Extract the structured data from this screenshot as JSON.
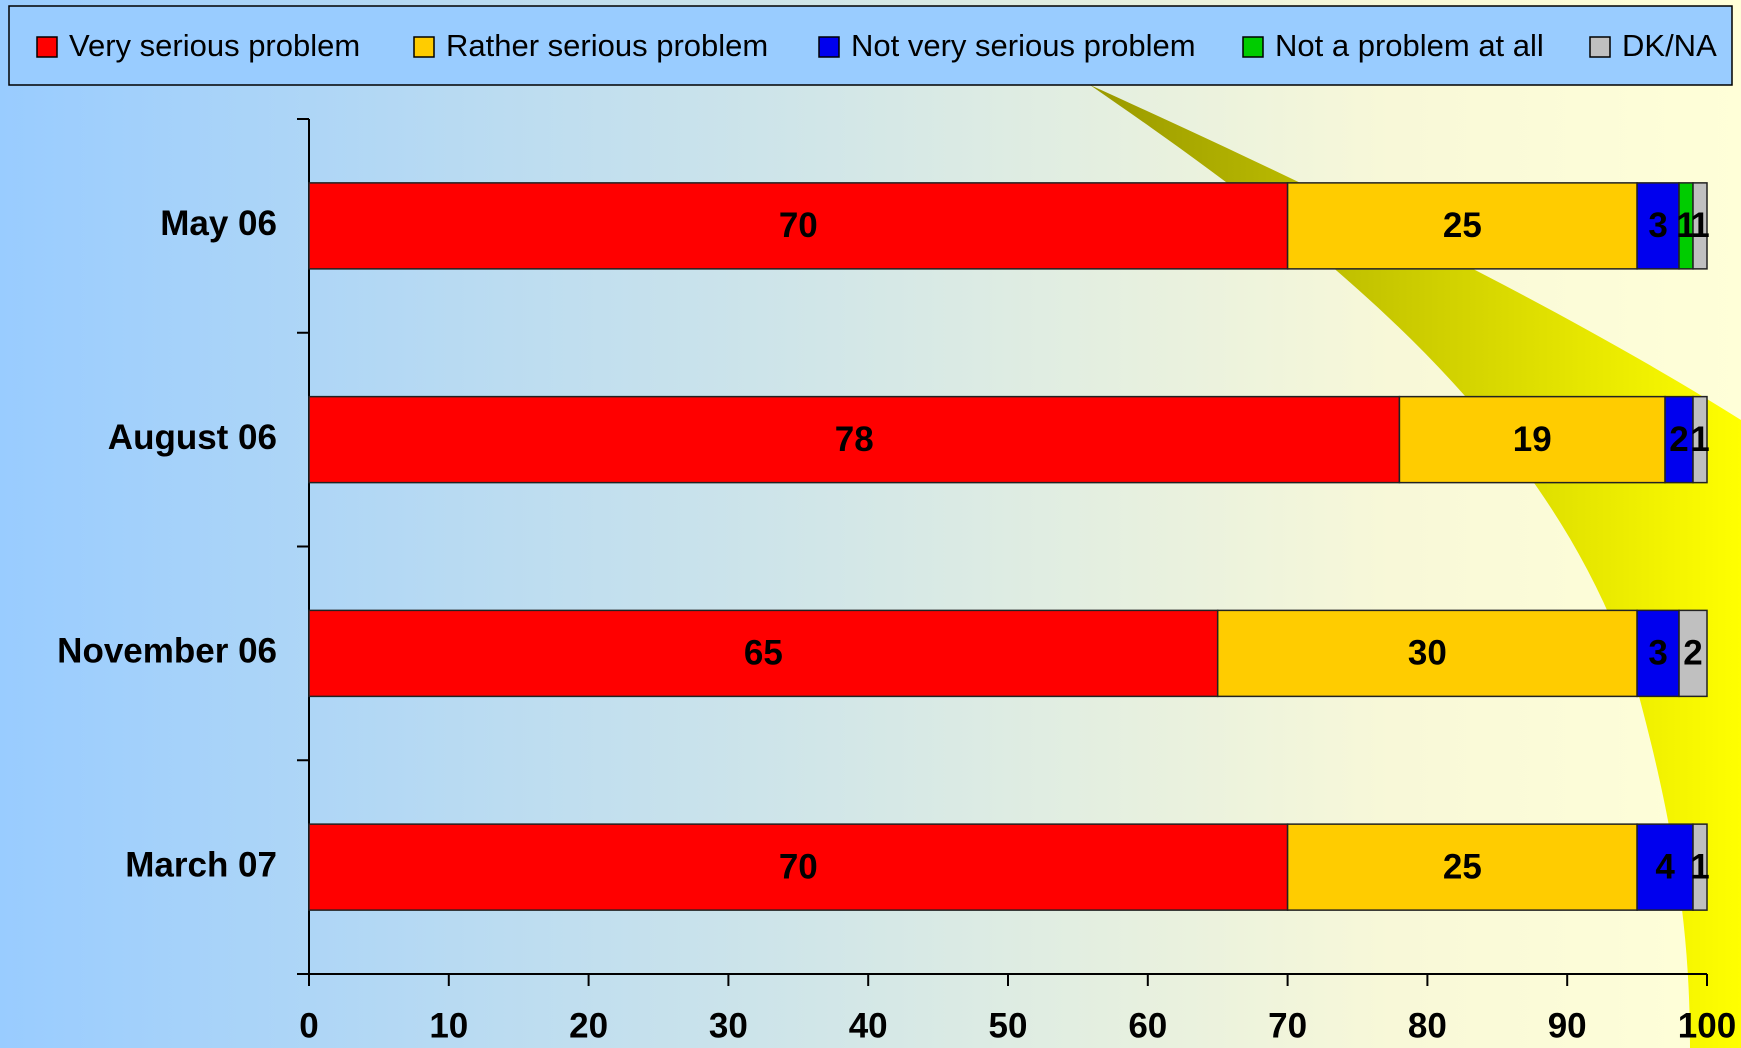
{
  "chart_data": {
    "type": "stacked-bar-horizontal",
    "categories": [
      "May 06",
      "August 06",
      "November 06",
      "March 07"
    ],
    "series": [
      {
        "name": "Very serious problem",
        "color": "#ff0000",
        "values": [
          70,
          78,
          65,
          70
        ]
      },
      {
        "name": "Rather serious problem",
        "color": "#ffcc00",
        "values": [
          25,
          19,
          30,
          25
        ]
      },
      {
        "name": "Not very serious problem",
        "color": "#0000ee",
        "values": [
          3,
          2,
          3,
          4
        ]
      },
      {
        "name": "Not a problem at all",
        "color": "#00cc00",
        "values": [
          1,
          null,
          null,
          null
        ]
      },
      {
        "name": "DK/NA",
        "color": "#c0c0c0",
        "values": [
          1,
          1,
          2,
          1
        ]
      }
    ],
    "xlim": [
      0,
      100
    ],
    "xticks": [
      0,
      10,
      20,
      30,
      40,
      50,
      60,
      70,
      80,
      90,
      100
    ],
    "legend": "top"
  }
}
